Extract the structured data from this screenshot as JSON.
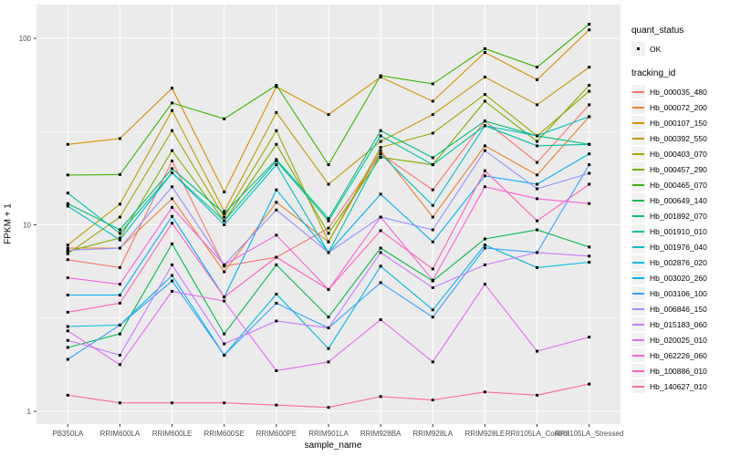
{
  "chart": {
    "y_axis_title": "FPKM + 1",
    "x_axis_title": "sample_name",
    "legend": {
      "quant_status_title": "quant_status",
      "quant_status_items": [
        {
          "label": "OK"
        }
      ],
      "tracking_id_title": "tracking_id"
    }
  },
  "chart_data": {
    "type": "line",
    "title": "",
    "xlabel": "sample_name",
    "ylabel": "FPKM + 1",
    "y_scale": "log10",
    "y_tick_values": [
      1,
      10,
      100
    ],
    "y_tick_labels": [
      "1",
      "10",
      "100"
    ],
    "y_minor_gridline_values": [
      3.1623,
      31.623
    ],
    "ylim_log": [
      0.85,
      152
    ],
    "grid": "white major and minor gridlines on gray panel",
    "legend_position": "right",
    "panel_background": "#EBEBEB",
    "gridline_color": "#FFFFFF",
    "axis_text_color": "#4D4D4D",
    "point_marker": "small black square (quant_status = OK)",
    "categories": [
      "PB350LA",
      "RRIM600LA",
      "RRIM600LE",
      "RRIM600SE",
      "RRIM600PE",
      "RRIM901LA",
      "RRIM928BA",
      "RRIM928LA",
      "RRIM928LE",
      "RRII105LA_Control",
      "RRII105LA_Stressed"
    ],
    "series": [
      {
        "name": "Hb_000035_480",
        "color": "#F8766D",
        "values": [
          6.5,
          5.9,
          22,
          6.0,
          6.7,
          9.6,
          24,
          15.4,
          36,
          21.6,
          44
        ]
      },
      {
        "name": "Hb_000072_200",
        "color": "#EA8331",
        "values": [
          7.5,
          7.5,
          13.8,
          5.6,
          13.2,
          8.1,
          25,
          11,
          26.5,
          18.5,
          38
        ]
      },
      {
        "name": "Hb_000107_150",
        "color": "#D89000",
        "values": [
          27,
          29,
          54,
          15,
          55,
          39,
          62,
          46,
          84,
          60,
          111
        ]
      },
      {
        "name": "Hb_000392_550",
        "color": "#C09B00",
        "values": [
          7.8,
          12.9,
          41,
          11.8,
          40,
          16.5,
          28,
          39,
          62,
          44,
          70
        ]
      },
      {
        "name": "Hb_000403_070",
        "color": "#A3A500",
        "values": [
          7.0,
          11.0,
          32,
          11.0,
          32,
          8.1,
          26,
          31,
          50,
          30,
          52
        ]
      },
      {
        "name": "Hb_000457_290",
        "color": "#7CAE00",
        "values": [
          7.2,
          8.5,
          25,
          10.5,
          27,
          9.0,
          23,
          21,
          46,
          28,
          56
        ]
      },
      {
        "name": "Hb_000465_070",
        "color": "#39B600",
        "values": [
          18.5,
          18.6,
          45,
          37,
          56,
          21,
          63,
          57,
          88,
          70,
          119
        ]
      },
      {
        "name": "Hb_000649_140",
        "color": "#00BB4E",
        "values": [
          2.2,
          2.6,
          7.9,
          2.6,
          6.1,
          3.2,
          7.5,
          5.0,
          8.4,
          9.4,
          7.6
        ]
      },
      {
        "name": "Hb_001892_070",
        "color": "#00BF7D",
        "values": [
          13,
          9.4,
          20,
          11.5,
          22.4,
          10.8,
          32,
          22.9,
          36,
          30,
          27
        ]
      },
      {
        "name": "Hb_001910_010",
        "color": "#00C1A3",
        "values": [
          14.8,
          9.0,
          19,
          10.5,
          22,
          10.5,
          30,
          21,
          34,
          26.5,
          27
        ]
      },
      {
        "name": "Hb_001976_040",
        "color": "#00BFC4",
        "values": [
          12.6,
          8.3,
          19,
          10,
          21,
          7.1,
          24,
          12.7,
          34,
          30,
          38
        ]
      },
      {
        "name": "Hb_002876_020",
        "color": "#00BAE0",
        "values": [
          2.85,
          2.9,
          5.35,
          2.0,
          4.25,
          2.17,
          6.0,
          3.5,
          7.8,
          5.9,
          6.3
        ]
      },
      {
        "name": "Hb_003020_260",
        "color": "#00B0F6",
        "values": [
          4.2,
          4.2,
          11.1,
          4.1,
          15.4,
          7.1,
          14.6,
          8.1,
          18.3,
          16.5,
          24
        ]
      },
      {
        "name": "Hb_003106_100",
        "color": "#35A2FF",
        "values": [
          1.9,
          2.9,
          5.0,
          2.0,
          3.8,
          2.8,
          4.9,
          3.2,
          7.5,
          7.1,
          21
        ]
      },
      {
        "name": "Hb_006846_150",
        "color": "#9590FF",
        "values": [
          7.3,
          7.5,
          16,
          6.1,
          12,
          7.1,
          11,
          9.4,
          25,
          15.6,
          18.9
        ]
      },
      {
        "name": "Hb_015183_060",
        "color": "#C77CFF",
        "values": [
          2.4,
          2.0,
          6.1,
          2.3,
          3.05,
          2.8,
          7.1,
          4.6,
          6.1,
          7.1,
          6.8
        ]
      },
      {
        "name": "Hb_020025_010",
        "color": "#E76BF3",
        "values": [
          2.7,
          1.78,
          4.4,
          3.9,
          1.65,
          1.84,
          3.1,
          1.84,
          4.8,
          2.1,
          2.5
        ]
      },
      {
        "name": "Hb_062226_060",
        "color": "#FA62DB",
        "values": [
          5.2,
          4.8,
          12.4,
          6.1,
          8.8,
          4.5,
          11,
          5.05,
          16,
          13.8,
          13
        ]
      },
      {
        "name": "Hb_100886_010",
        "color": "#FF62BC",
        "values": [
          3.4,
          3.8,
          10.2,
          4.1,
          6.7,
          4.5,
          9.3,
          5.8,
          19.5,
          10.5,
          16.5
        ]
      },
      {
        "name": "Hb_140627_010",
        "color": "#FF6A98",
        "values": [
          1.22,
          1.11,
          1.11,
          1.11,
          1.08,
          1.05,
          1.2,
          1.15,
          1.27,
          1.22,
          1.4
        ]
      }
    ]
  }
}
